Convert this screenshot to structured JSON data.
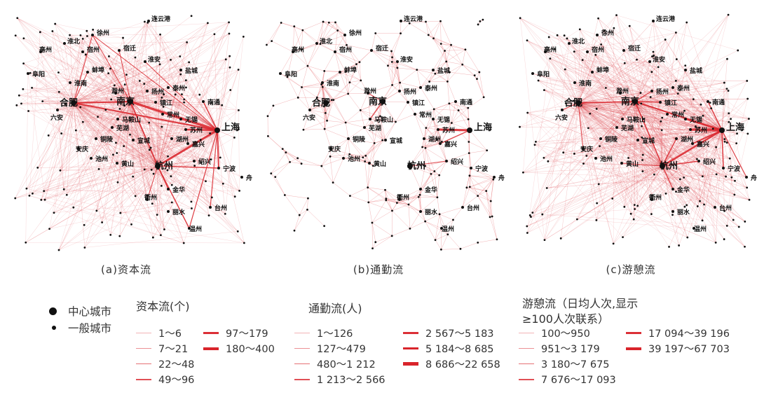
{
  "panels": [
    {
      "id": "a",
      "caption": "(a)资本流"
    },
    {
      "id": "b",
      "caption": "(b)通勤流"
    },
    {
      "id": "c",
      "caption": "(c)游憩流"
    }
  ],
  "central_cities": [
    {
      "name": "上海",
      "pos": "shanghai"
    },
    {
      "name": "南京",
      "pos": "nanjing"
    },
    {
      "name": "杭州",
      "pos": "hangzhou"
    },
    {
      "name": "合肥",
      "pos": "hefei"
    }
  ],
  "city_labels": [
    "连云港",
    "徐州",
    "淮北",
    "宿州",
    "宿迁",
    "亳州",
    "阜阳",
    "淮安",
    "蚌埠",
    "盐城",
    "淮南",
    "扬州",
    "泰州",
    "滁州",
    "南通",
    "镇江",
    "常州",
    "六安",
    "马鞍山",
    "芜湖",
    "无锡",
    "苏州",
    "铜陵",
    "宣城",
    "嘉兴",
    "安庆",
    "池州",
    "湖州",
    "黄山",
    "绍兴",
    "宁波",
    "舟山",
    "衢州",
    "金华",
    "丽水",
    "台州",
    "温州"
  ],
  "legend": {
    "city_types": {
      "center": "中心城市",
      "general": "一般城市"
    },
    "capital": {
      "title": "资本流(个)",
      "items": [
        "1～6",
        "7～21",
        "22～48",
        "49～96",
        "97～179",
        "180～400"
      ]
    },
    "commute": {
      "title": "通勤流(人)",
      "items": [
        "1～126",
        "127～479",
        "480～1 212",
        "1 213～2 566",
        "2 567～5 183",
        "5 184～8 685",
        "8 686～22 658"
      ]
    },
    "recreation": {
      "title_line1": "游憩流（日均人次,显示",
      "title_line2": "≥100人次联系）",
      "items": [
        "100～950",
        "951～3 179",
        "3 180～7 675",
        "7 676～17 093",
        "17 094～39 196",
        "39 197～67 703"
      ]
    }
  },
  "colors": {
    "flow": "#d9242b",
    "flow_light": "#f2a4a6",
    "node": "#111111"
  }
}
